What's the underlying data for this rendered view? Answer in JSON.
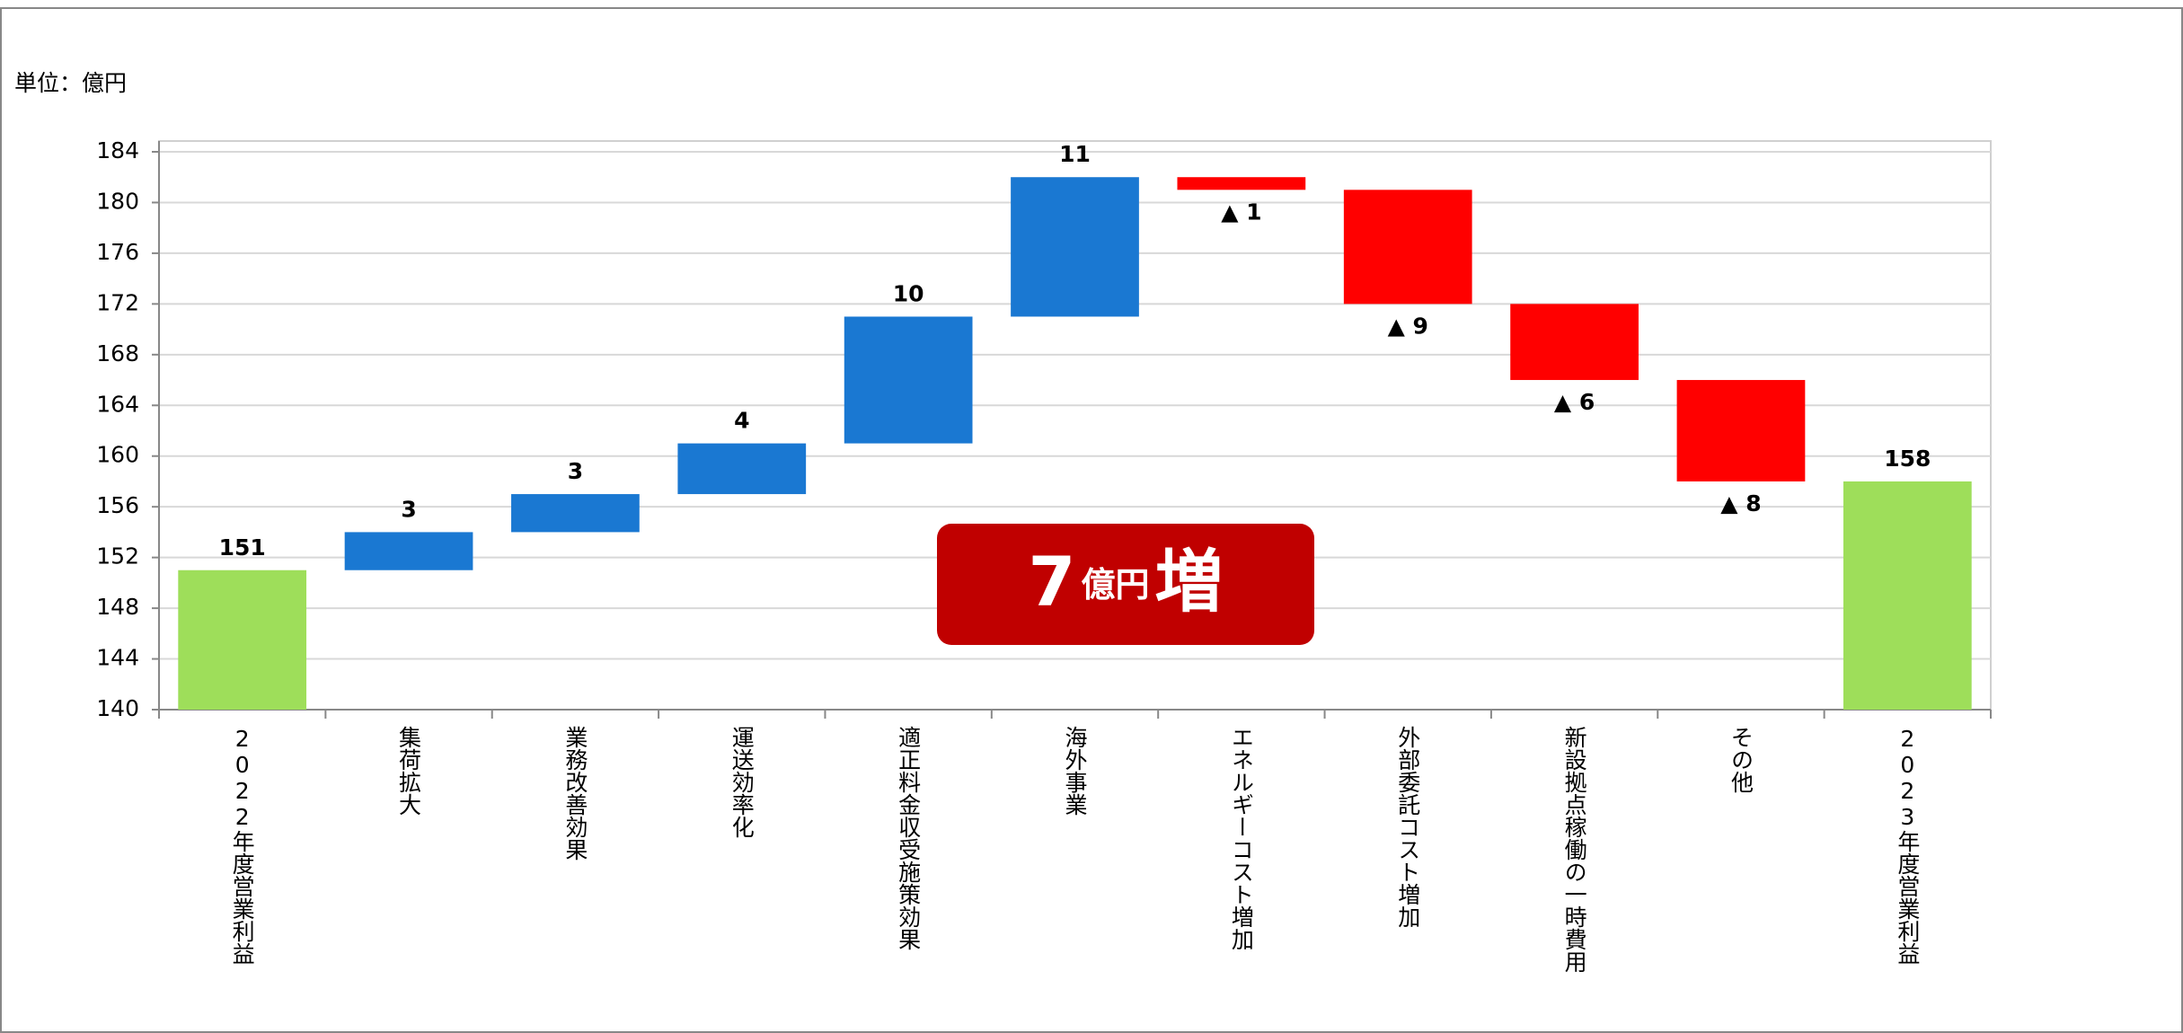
{
  "chart_data": {
    "type": "waterfall",
    "unit_label": "単位：億円",
    "categories": [
      "2022年度営業利益",
      "集荷拡大",
      "業務改善効果",
      "運送効率化",
      "適正料金収受施策効果",
      "海外事業",
      "エネルギーコスト増加",
      "外部委託コスト増加",
      "新設拠点稼働の一時費用",
      "その他",
      "2023年度営業利益"
    ],
    "measure": [
      "absolute",
      "relative",
      "relative",
      "relative",
      "relative",
      "relative",
      "relative",
      "relative",
      "relative",
      "relative",
      "absolute"
    ],
    "values": [
      151,
      3,
      3,
      4,
      10,
      11,
      -1,
      -9,
      -6,
      -8,
      158
    ],
    "value_labels": [
      "151",
      "3",
      "3",
      "4",
      "10",
      "11",
      "▲ 1",
      "▲ 9",
      "▲ 6",
      "▲ 8",
      "158"
    ],
    "colors": {
      "total": "#9ede5a",
      "increase": "#1a78d2",
      "decrease": "#ff0000"
    },
    "ylim": [
      140,
      184
    ],
    "yticks": [
      140,
      144,
      148,
      152,
      156,
      160,
      164,
      168,
      172,
      176,
      180,
      184
    ],
    "grid": true,
    "annotation": {
      "number": "7",
      "unit": "億円",
      "suffix": "増",
      "color": "#c00000"
    }
  }
}
